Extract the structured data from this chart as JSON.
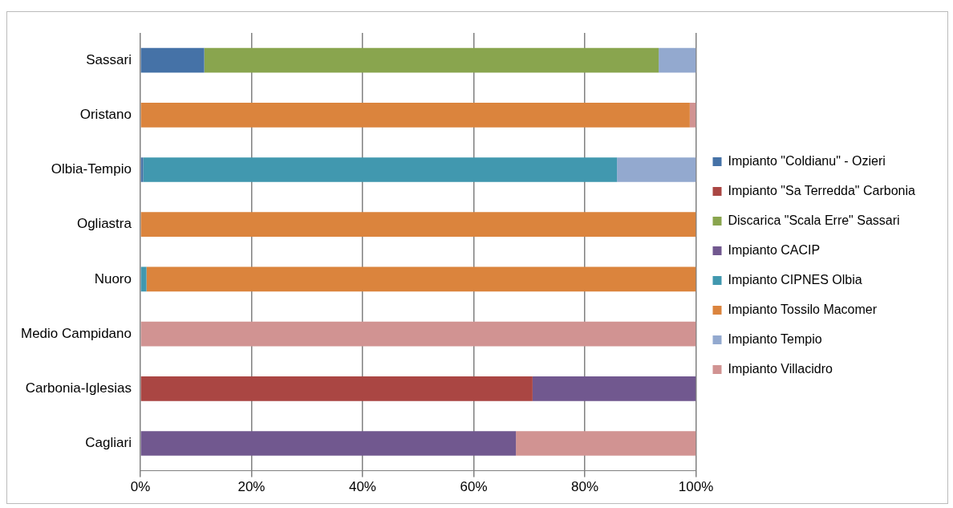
{
  "chart_data": {
    "type": "bar",
    "orientation": "horizontal",
    "stacked": true,
    "grid": "x",
    "legend": "right",
    "categories": [
      "Sassari",
      "Oristano",
      "Olbia-Tempio",
      "Ogliastra",
      "Nuoro",
      "Medio Campidano",
      "Carbonia-Iglesias",
      "Cagliari"
    ],
    "xlim": [
      0,
      100
    ],
    "xticks": [
      {
        "value": 0,
        "label": "0%"
      },
      {
        "value": 20,
        "label": "20%"
      },
      {
        "value": 40,
        "label": "40%"
      },
      {
        "value": 60,
        "label": "60%"
      },
      {
        "value": 80,
        "label": "80%"
      },
      {
        "value": 100,
        "label": "100%"
      }
    ],
    "series": [
      {
        "name": "Impianto \"Coldianu\" - Ozieri",
        "color": "#4572a7",
        "values": [
          11.5,
          null,
          0.5,
          null,
          null,
          null,
          null,
          null
        ]
      },
      {
        "name": "Impianto \"Sa Terredda\" Carbonia",
        "color": "#aa4643",
        "values": [
          null,
          null,
          null,
          null,
          null,
          null,
          70.6,
          null
        ]
      },
      {
        "name": "Discarica \"Scala Erre\" Sassari",
        "color": "#89a54e",
        "values": [
          81.8,
          null,
          null,
          null,
          null,
          null,
          null,
          null
        ]
      },
      {
        "name": "Impianto CACIP",
        "color": "#71588f",
        "values": [
          null,
          null,
          null,
          null,
          null,
          null,
          29.4,
          67.6
        ]
      },
      {
        "name": "Impianto CIPNES Olbia",
        "color": "#4198af",
        "values": [
          null,
          null,
          85.3,
          null,
          1.1,
          null,
          null,
          null
        ]
      },
      {
        "name": "Impianto Tossilo Macomer",
        "color": "#db843d",
        "values": [
          null,
          98.9,
          null,
          100,
          98.9,
          null,
          null,
          null
        ]
      },
      {
        "name": "Impianto Tempio",
        "color": "#93a9cf",
        "values": [
          6.7,
          null,
          14.2,
          null,
          null,
          null,
          null,
          null
        ]
      },
      {
        "name": "Impianto Villacidro",
        "color": "#d19392",
        "values": [
          null,
          1.1,
          null,
          null,
          null,
          100,
          null,
          32.4
        ]
      }
    ]
  }
}
